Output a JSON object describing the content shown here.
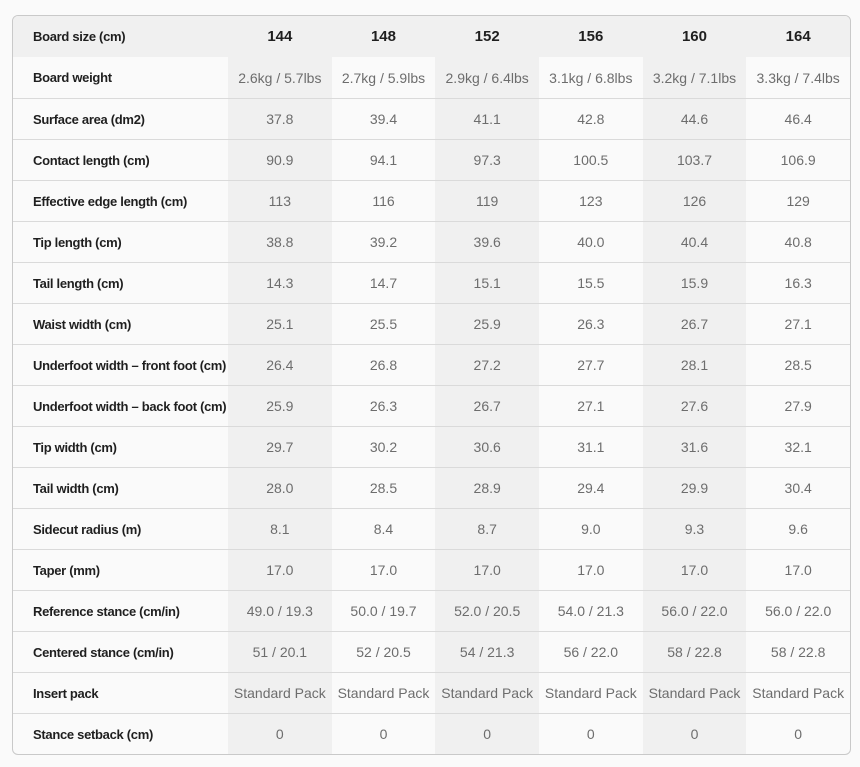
{
  "colors": {
    "page_bg": "#fafafa",
    "header_bg": "#f0f0f0",
    "stripe_bg": "#f0f0f0",
    "border": "#c9c9c9",
    "row_divider": "#dadada",
    "label_text": "#1f1f1f",
    "value_text": "#6d6d6d"
  },
  "table": {
    "header": {
      "label": "Board size (cm)",
      "values": [
        "144",
        "148",
        "152",
        "156",
        "160",
        "164"
      ]
    },
    "rows": [
      {
        "label": "Board weight",
        "values": [
          "2.6kg / 5.7lbs",
          "2.7kg / 5.9lbs",
          "2.9kg / 6.4lbs",
          "3.1kg / 6.8lbs",
          "3.2kg / 7.1lbs",
          "3.3kg / 7.4lbs"
        ]
      },
      {
        "label": "Surface area (dm2)",
        "values": [
          "37.8",
          "39.4",
          "41.1",
          "42.8",
          "44.6",
          "46.4"
        ]
      },
      {
        "label": "Contact length (cm)",
        "values": [
          "90.9",
          "94.1",
          "97.3",
          "100.5",
          "103.7",
          "106.9"
        ]
      },
      {
        "label": "Effective edge length (cm)",
        "values": [
          "113",
          "116",
          "119",
          "123",
          "126",
          "129"
        ]
      },
      {
        "label": "Tip length (cm)",
        "values": [
          "38.8",
          "39.2",
          "39.6",
          "40.0",
          "40.4",
          "40.8"
        ]
      },
      {
        "label": "Tail length (cm)",
        "values": [
          "14.3",
          "14.7",
          "15.1",
          "15.5",
          "15.9",
          "16.3"
        ]
      },
      {
        "label": "Waist width (cm)",
        "values": [
          "25.1",
          "25.5",
          "25.9",
          "26.3",
          "26.7",
          "27.1"
        ]
      },
      {
        "label": "Underfoot width – front foot (cm)",
        "values": [
          "26.4",
          "26.8",
          "27.2",
          "27.7",
          "28.1",
          "28.5"
        ]
      },
      {
        "label": "Underfoot width – back foot (cm)",
        "values": [
          "25.9",
          "26.3",
          "26.7",
          "27.1",
          "27.6",
          "27.9"
        ]
      },
      {
        "label": "Tip width (cm)",
        "values": [
          "29.7",
          "30.2",
          "30.6",
          "31.1",
          "31.6",
          "32.1"
        ]
      },
      {
        "label": "Tail width (cm)",
        "values": [
          "28.0",
          "28.5",
          "28.9",
          "29.4",
          "29.9",
          "30.4"
        ]
      },
      {
        "label": "Sidecut radius (m)",
        "values": [
          "8.1",
          "8.4",
          "8.7",
          "9.0",
          "9.3",
          "9.6"
        ]
      },
      {
        "label": "Taper (mm)",
        "values": [
          "17.0",
          "17.0",
          "17.0",
          "17.0",
          "17.0",
          "17.0"
        ]
      },
      {
        "label": "Reference stance (cm/in)",
        "values": [
          "49.0 / 19.3",
          "50.0 / 19.7",
          "52.0 / 20.5",
          "54.0 / 21.3",
          "56.0 / 22.0",
          "56.0 / 22.0"
        ]
      },
      {
        "label": "Centered stance (cm/in)",
        "values": [
          "51 / 20.1",
          "52 / 20.5",
          "54 / 21.3",
          "56 / 22.0",
          "58 / 22.8",
          "58 / 22.8"
        ]
      },
      {
        "label": "Insert pack",
        "values": [
          "Standard Pack",
          "Standard Pack",
          "Standard Pack",
          "Standard Pack",
          "Standard Pack",
          "Standard Pack"
        ]
      },
      {
        "label": "Stance setback (cm)",
        "values": [
          "0",
          "0",
          "0",
          "0",
          "0",
          "0"
        ]
      }
    ]
  }
}
